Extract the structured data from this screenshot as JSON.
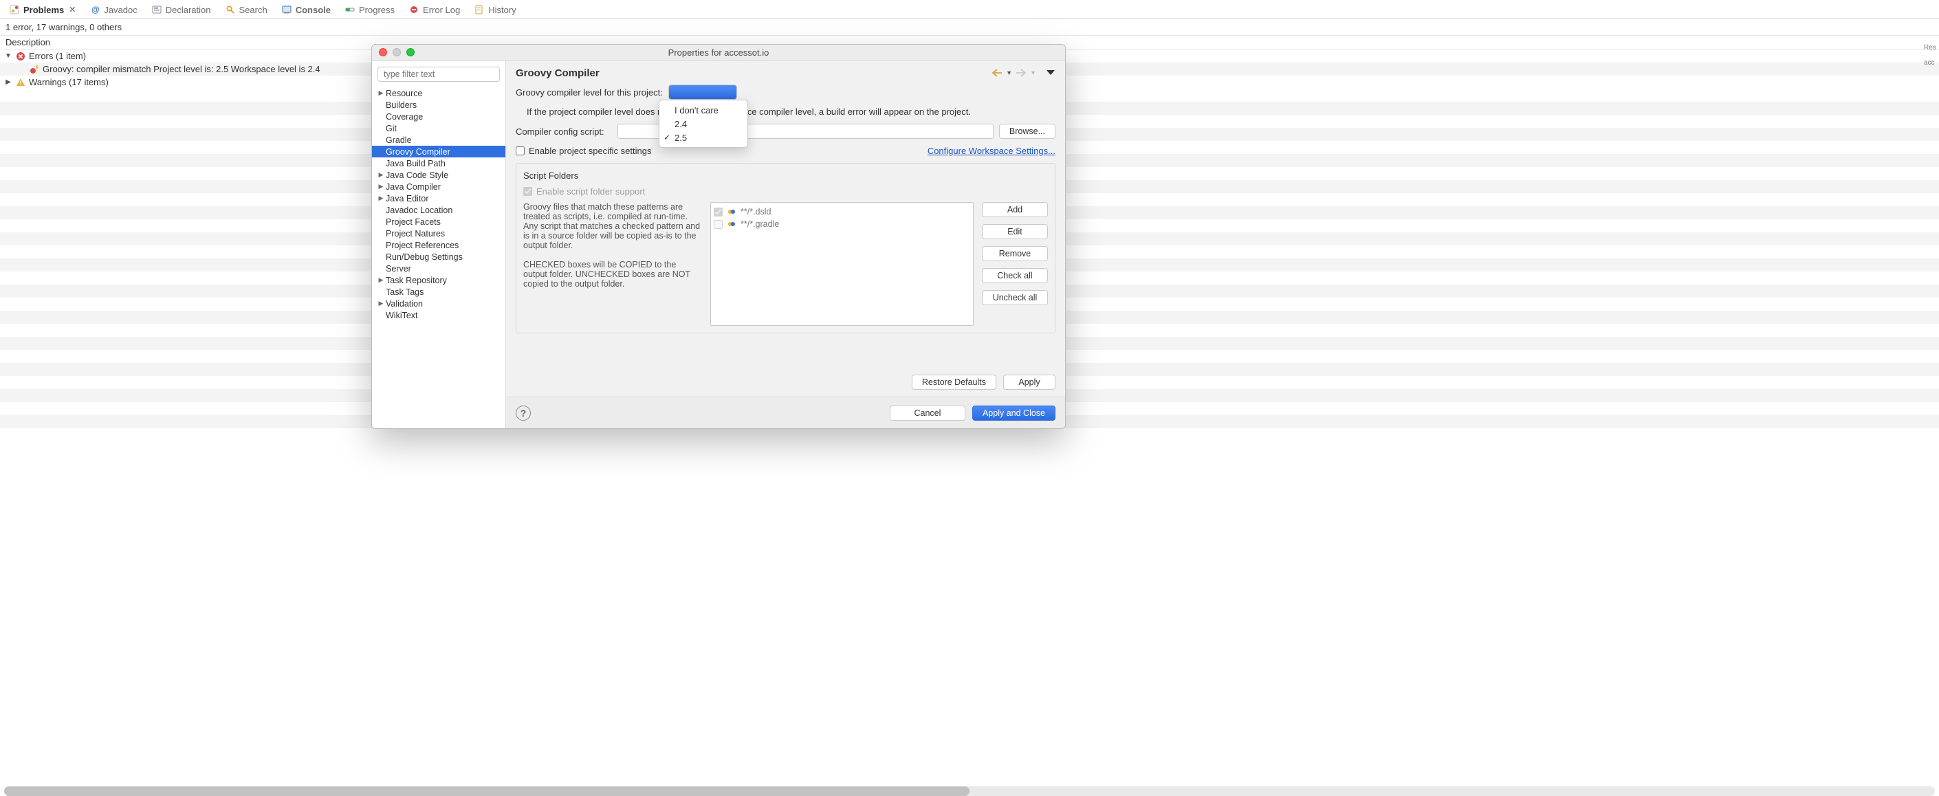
{
  "viewTabs": {
    "items": [
      {
        "label": "Problems",
        "active": true,
        "closable": true
      },
      {
        "label": "Javadoc",
        "active": false
      },
      {
        "label": "Declaration",
        "active": false
      },
      {
        "label": "Search",
        "active": false
      },
      {
        "label": "Console",
        "active": false,
        "bold": true
      },
      {
        "label": "Progress",
        "active": false
      },
      {
        "label": "Error Log",
        "active": false
      },
      {
        "label": "History",
        "active": false
      }
    ]
  },
  "problems": {
    "summary": "1 error, 17 warnings, 0 others",
    "columnHeader": "Description",
    "errorsGroup": {
      "label": "Errors (1 item)"
    },
    "errorItem": {
      "label": "Groovy: compiler mismatch Project level is: 2.5 Workspace level is 2.4"
    },
    "warningsGroup": {
      "label": "Warnings (17 items)"
    }
  },
  "dialog": {
    "title": "Properties for accessot.io",
    "filterPlaceholder": "type filter text",
    "sidebar": {
      "items": [
        {
          "label": "Resource",
          "expandable": true
        },
        {
          "label": "Builders"
        },
        {
          "label": "Coverage"
        },
        {
          "label": "Git"
        },
        {
          "label": "Gradle"
        },
        {
          "label": "Groovy Compiler",
          "selected": true
        },
        {
          "label": "Java Build Path"
        },
        {
          "label": "Java Code Style",
          "expandable": true
        },
        {
          "label": "Java Compiler",
          "expandable": true
        },
        {
          "label": "Java Editor",
          "expandable": true
        },
        {
          "label": "Javadoc Location"
        },
        {
          "label": "Project Facets"
        },
        {
          "label": "Project Natures"
        },
        {
          "label": "Project References"
        },
        {
          "label": "Run/Debug Settings"
        },
        {
          "label": "Server"
        },
        {
          "label": "Task Repository",
          "expandable": true
        },
        {
          "label": "Task Tags"
        },
        {
          "label": "Validation",
          "expandable": true
        },
        {
          "label": "WikiText"
        }
      ]
    },
    "main": {
      "title": "Groovy Compiler",
      "compilerLevelLabel": "Groovy compiler level for this project:",
      "compilerLevelOptions": [
        {
          "label": "I don't care",
          "checked": false
        },
        {
          "label": "2.4",
          "checked": false
        },
        {
          "label": "2.5",
          "checked": true
        }
      ],
      "mismatchInfo": "If the project compiler level does not match the workspace compiler level, a build error will appear on the project.",
      "configScriptLabel": "Compiler config script:",
      "browseLabel": "Browse...",
      "enableSpecificLabel": "Enable project specific settings",
      "enableSpecificChecked": false,
      "configureWorkspaceLink": "Configure Workspace Settings...",
      "scriptFolders": {
        "title": "Script Folders",
        "enableSupportLabel": "Enable script folder support",
        "enableSupportChecked": true,
        "helpPara1": "Groovy files that match these patterns are treated as scripts, i.e. compiled at run-time. Any script that matches a checked pattern and is in a source folder will be copied as-is to the output folder.",
        "helpPara2": "CHECKED boxes will be COPIED to the output folder.  UNCHECKED boxes are NOT copied to the output folder.",
        "patterns": [
          {
            "label": "**/*.dsld",
            "checked": true
          },
          {
            "label": "**/*.gradle",
            "checked": false
          }
        ],
        "buttons": {
          "add": "Add",
          "edit": "Edit",
          "remove": "Remove",
          "checkAll": "Check all",
          "uncheckAll": "Uncheck all"
        }
      },
      "restoreDefaults": "Restore Defaults",
      "apply": "Apply"
    },
    "footer": {
      "cancel": "Cancel",
      "applyClose": "Apply and Close"
    }
  },
  "style": {
    "accent": "#2f6fe0",
    "link": "#1a56c4"
  }
}
